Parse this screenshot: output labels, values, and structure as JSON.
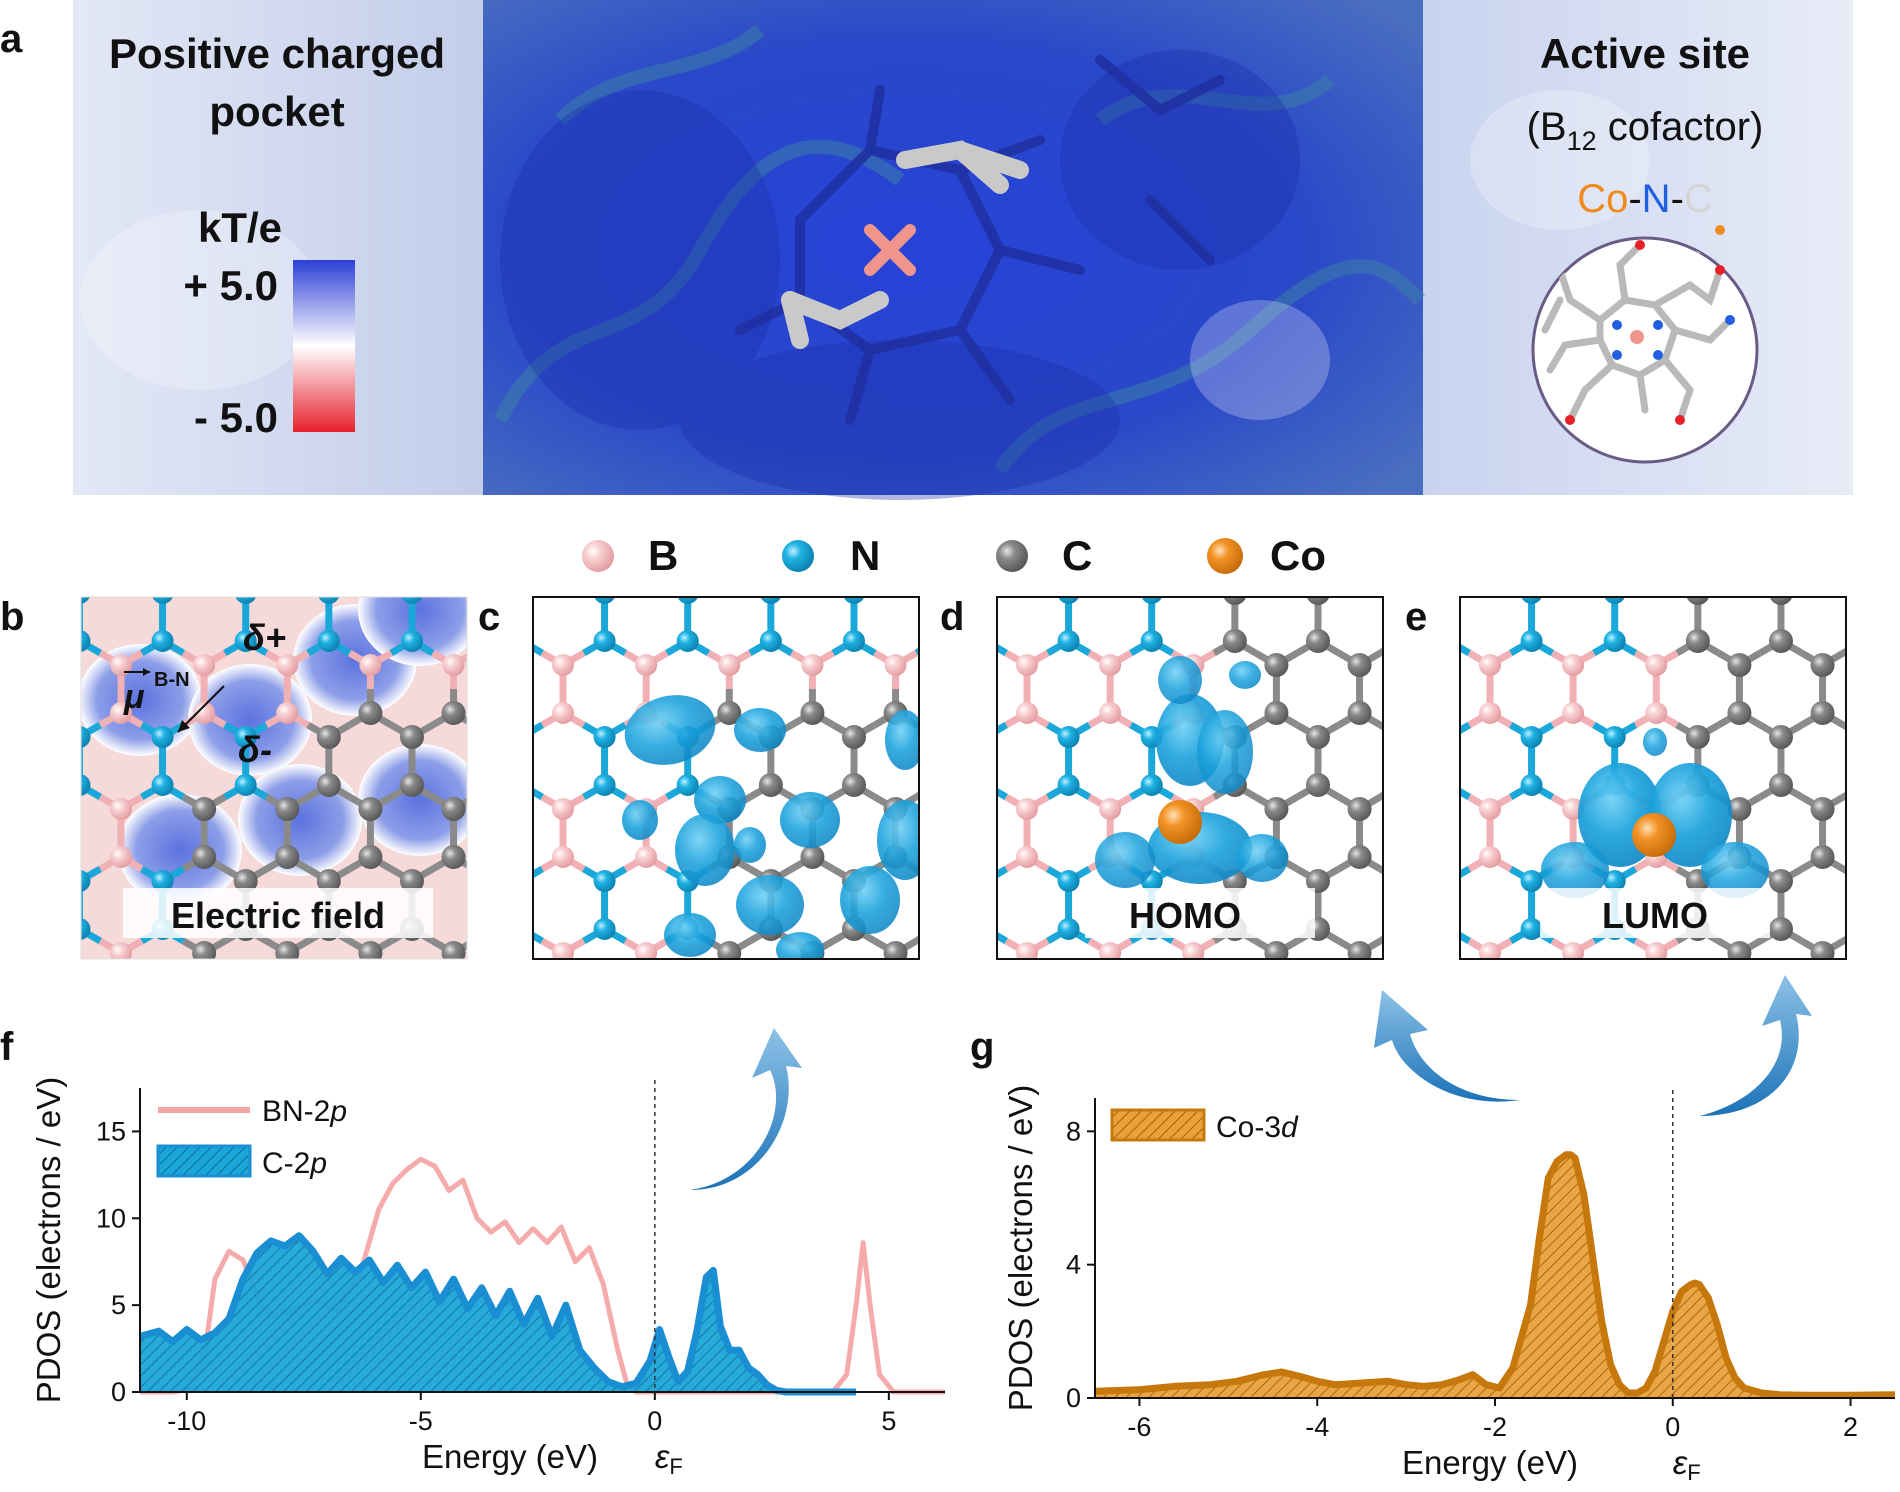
{
  "panel_letters": {
    "a": "a",
    "b": "b",
    "c": "c",
    "d": "d",
    "e": "e",
    "f": "f",
    "g": "g"
  },
  "panel_a": {
    "left_title_line1": "Positive charged",
    "left_title_line2": "pocket",
    "colorbar_unit": "kT/e",
    "colorbar_max": "+ 5.0",
    "colorbar_min": "- 5.0",
    "right_title": "Active site",
    "right_subtitle_pre": "(B",
    "right_subtitle_sub": "12",
    "right_subtitle_post": " cofactor)",
    "site_co": "Co",
    "site_dash1": "-",
    "site_n": "N",
    "site_dash2": "-",
    "site_c": "C",
    "colors": {
      "positive": "#2c3fd6",
      "negative": "#e8202a",
      "co": "#f08a1c",
      "n": "#1f5fe0",
      "c": "#d9d9d9"
    }
  },
  "atom_legend": [
    {
      "label": "B",
      "color": "#f4b9bc"
    },
    {
      "label": "N",
      "color": "#1aa7d9"
    },
    {
      "label": "C",
      "color": "#7a7a7a"
    },
    {
      "label": "Co",
      "color": "#f08a1c"
    }
  ],
  "panel_b": {
    "dipole_label": "B-N",
    "delta_plus": "δ+",
    "delta_minus": "δ-",
    "caption": "Electric field"
  },
  "panel_d": {
    "caption": "HOMO"
  },
  "panel_e": {
    "caption": "LUMO"
  },
  "chart_data": [
    {
      "id": "f",
      "type": "area",
      "xlabel": "Energy (eV)",
      "ylabel": "PDOS (electrons / eV)",
      "fermi_label": "ε",
      "fermi_sub": "F",
      "xlim": [
        -11,
        6.2
      ],
      "ylim": [
        0,
        17.5
      ],
      "xticks": [
        -10,
        -5,
        0,
        5
      ],
      "xtick_labels": [
        "-10",
        "-5",
        "0",
        "5"
      ],
      "yticks": [
        0,
        5,
        10,
        15
      ],
      "ytick_labels": [
        "0",
        "5",
        "10",
        "15"
      ],
      "series": [
        {
          "name": "BN-2",
          "name_italic": "p",
          "style": "line",
          "color": "#f4a6a6",
          "x": [
            -11,
            -10.3,
            -9.9,
            -9.6,
            -9.4,
            -9.1,
            -8.8,
            -8.5,
            -8.2,
            -7.8,
            -7.3,
            -6.8,
            -6.3,
            -5.9,
            -5.6,
            -5.3,
            -5.0,
            -4.7,
            -4.4,
            -4.1,
            -3.8,
            -3.5,
            -3.2,
            -2.9,
            -2.6,
            -2.3,
            -2.0,
            -1.7,
            -1.4,
            -1.1,
            -0.8,
            -0.6,
            -0.4,
            0,
            1,
            2,
            3,
            3.8,
            4.1,
            4.3,
            4.45,
            4.6,
            4.8,
            5.1,
            6.2
          ],
          "y": [
            0,
            0,
            0.2,
            2.5,
            6.5,
            8.1,
            7.6,
            5.5,
            4.4,
            4.6,
            5.3,
            4.7,
            6.8,
            10.5,
            12.0,
            12.8,
            13.4,
            13.0,
            11.6,
            12.2,
            10.0,
            9.2,
            9.8,
            8.6,
            9.4,
            8.6,
            9.5,
            7.5,
            8.3,
            6.2,
            2.5,
            0.5,
            0,
            0,
            0,
            0,
            0,
            0,
            1.0,
            5.0,
            8.6,
            5.0,
            1.0,
            0,
            0
          ]
        },
        {
          "name": "C-2",
          "name_italic": "p",
          "style": "area",
          "color": "#1a8ed2",
          "fill": "#1aa6d8",
          "x": [
            -11,
            -10.6,
            -10.3,
            -10.0,
            -9.7,
            -9.4,
            -9.1,
            -8.8,
            -8.5,
            -8.2,
            -7.9,
            -7.6,
            -7.3,
            -7.0,
            -6.7,
            -6.4,
            -6.1,
            -5.8,
            -5.5,
            -5.2,
            -4.9,
            -4.6,
            -4.3,
            -4.0,
            -3.7,
            -3.4,
            -3.1,
            -2.8,
            -2.5,
            -2.2,
            -1.9,
            -1.6,
            -1.3,
            -1.0,
            -0.7,
            -0.4,
            -0.1,
            0.1,
            0.3,
            0.5,
            0.7,
            0.9,
            1.1,
            1.25,
            1.4,
            1.6,
            1.8,
            2.0,
            2.2,
            2.4,
            2.6,
            2.8,
            3.0,
            3.5,
            4.3
          ],
          "y": [
            3.2,
            3.5,
            2.9,
            3.6,
            3.0,
            3.4,
            4.2,
            6.5,
            8.0,
            8.7,
            8.4,
            9.0,
            8.1,
            6.8,
            7.7,
            6.9,
            7.6,
            6.3,
            7.3,
            6.0,
            6.9,
            5.2,
            6.5,
            4.8,
            6.0,
            4.4,
            5.8,
            3.9,
            5.4,
            3.2,
            5.0,
            2.4,
            1.4,
            0.6,
            0.3,
            0.5,
            1.8,
            3.6,
            2.0,
            0.6,
            1.2,
            3.5,
            6.6,
            7.0,
            3.8,
            2.4,
            2.4,
            1.4,
            1.0,
            0.4,
            0.1,
            0,
            0,
            0,
            0
          ]
        }
      ]
    },
    {
      "id": "g",
      "type": "area",
      "xlabel": "Energy (eV)",
      "ylabel": "PDOS (electrons / eV)",
      "fermi_label": "ε",
      "fermi_sub": "F",
      "xlim": [
        -6.5,
        2.5
      ],
      "ylim": [
        0,
        9
      ],
      "xticks": [
        -6,
        -4,
        -2,
        0,
        2
      ],
      "xtick_labels": [
        "-6",
        "-4",
        "-2",
        "0",
        "2"
      ],
      "yticks": [
        0,
        4,
        8
      ],
      "ytick_labels": [
        "0",
        "4",
        "8"
      ],
      "series": [
        {
          "name": "Co-3",
          "name_italic": "d",
          "style": "area",
          "color": "#c7780c",
          "fill": "#e9a13c",
          "x": [
            -6.5,
            -6.0,
            -5.6,
            -5.2,
            -4.9,
            -4.6,
            -4.4,
            -4.2,
            -4.0,
            -3.8,
            -3.5,
            -3.2,
            -3.0,
            -2.8,
            -2.6,
            -2.4,
            -2.25,
            -2.1,
            -1.95,
            -1.8,
            -1.6,
            -1.5,
            -1.4,
            -1.3,
            -1.2,
            -1.15,
            -1.1,
            -1.0,
            -0.9,
            -0.8,
            -0.7,
            -0.6,
            -0.5,
            -0.4,
            -0.3,
            -0.2,
            -0.1,
            0.0,
            0.1,
            0.2,
            0.25,
            0.3,
            0.4,
            0.5,
            0.6,
            0.7,
            0.8,
            1.0,
            1.2,
            1.5,
            2.0,
            2.5
          ],
          "y": [
            0.2,
            0.25,
            0.35,
            0.4,
            0.5,
            0.7,
            0.78,
            0.65,
            0.5,
            0.4,
            0.45,
            0.5,
            0.4,
            0.35,
            0.4,
            0.55,
            0.7,
            0.4,
            0.3,
            0.9,
            2.8,
            4.8,
            6.6,
            7.1,
            7.3,
            7.3,
            7.2,
            6.1,
            4.2,
            2.3,
            1.0,
            0.4,
            0.15,
            0.15,
            0.3,
            0.8,
            1.7,
            2.6,
            3.2,
            3.4,
            3.45,
            3.4,
            3.0,
            2.2,
            1.2,
            0.6,
            0.3,
            0.15,
            0.1,
            0.08,
            0.08,
            0.1
          ]
        }
      ]
    }
  ]
}
